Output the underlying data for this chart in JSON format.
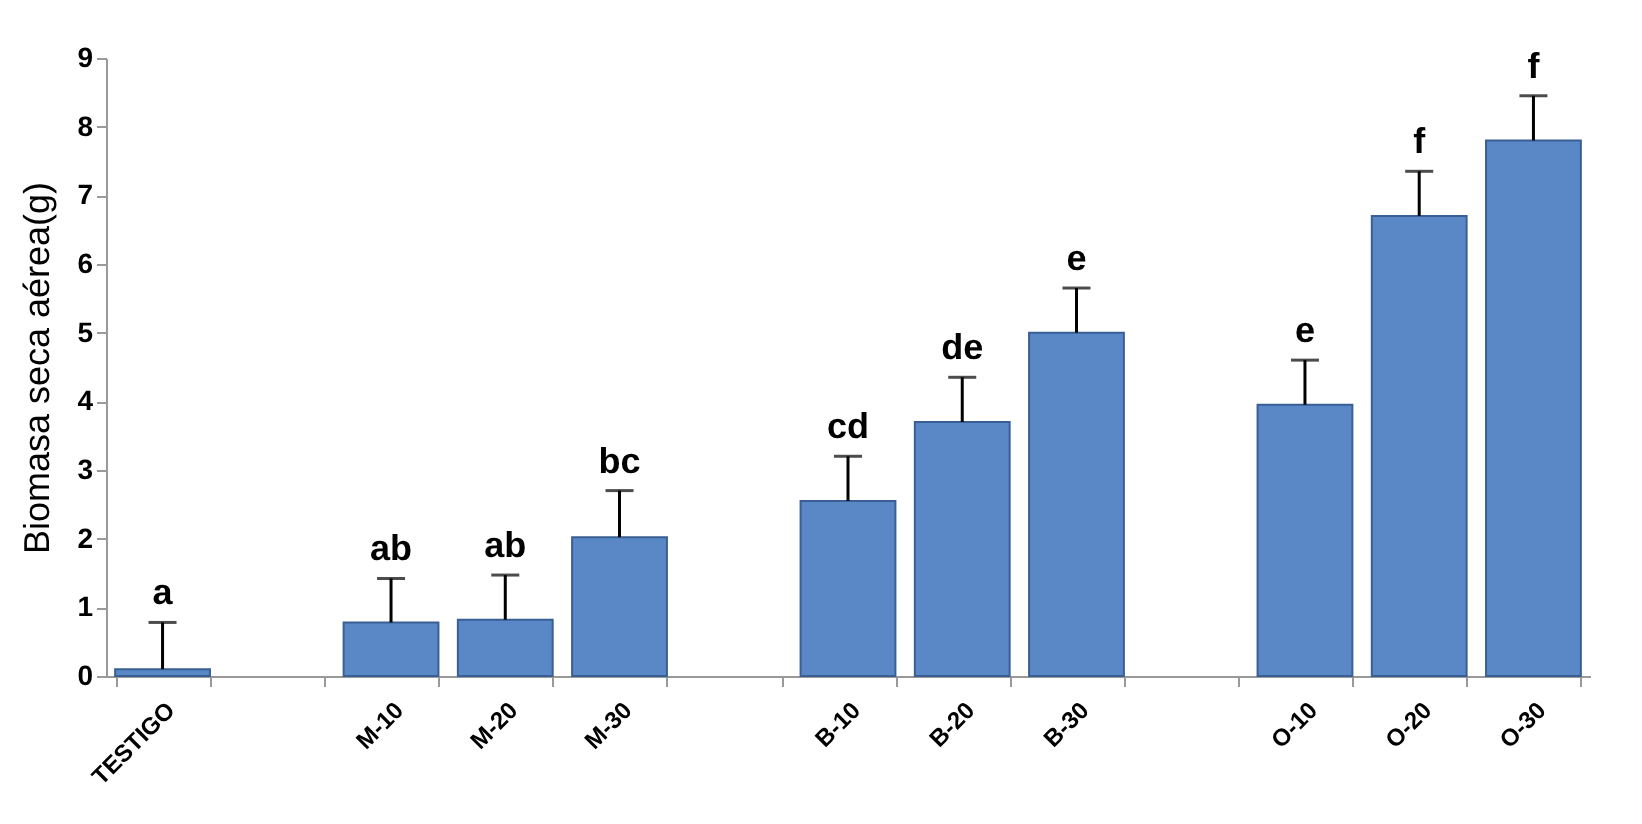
{
  "chart_data": {
    "type": "bar",
    "ylabel": "Biomasa seca aérea(g)",
    "categories": [
      "TESTIGO",
      null,
      "M-10",
      "M-20",
      "M-30",
      null,
      "B-10",
      "B-20",
      "B-30",
      null,
      "O-10",
      "O-20",
      "O-30"
    ],
    "values": [
      0.1,
      null,
      0.78,
      0.82,
      2.02,
      null,
      2.55,
      3.7,
      5.0,
      null,
      3.95,
      6.7,
      7.8
    ],
    "errors": [
      [
        0.1,
        0.78
      ],
      null,
      [
        0.78,
        1.42
      ],
      [
        0.82,
        1.47
      ],
      [
        2.02,
        2.7
      ],
      null,
      [
        2.55,
        3.2
      ],
      [
        3.7,
        4.35
      ],
      [
        5.0,
        5.65
      ],
      null,
      [
        3.95,
        4.6
      ],
      [
        6.7,
        7.35
      ],
      [
        7.8,
        8.45
      ]
    ],
    "color": "#5a87c6",
    "ylim": [
      0,
      9
    ],
    "yticks": [
      0,
      1,
      2,
      3,
      4,
      5,
      6,
      7,
      8,
      9
    ],
    "grid": false,
    "annotations": [
      {
        "text": "a",
        "x": "TESTIGO",
        "y": 0.78
      },
      {
        "text": "ab",
        "x": "M-10",
        "y": 1.42
      },
      {
        "text": "ab",
        "x": "M-20",
        "y": 1.47
      },
      {
        "text": "bc",
        "x": "M-30",
        "y": 2.7
      },
      {
        "text": "cd",
        "x": "B-10",
        "y": 3.2
      },
      {
        "text": "de",
        "x": "B-20",
        "y": 4.35
      },
      {
        "text": "e",
        "x": "B-30",
        "y": 5.65
      },
      {
        "text": "e",
        "x": "O-10",
        "y": 4.6
      },
      {
        "text": "f",
        "x": "O-20",
        "y": 7.35
      },
      {
        "text": "f",
        "x": "O-30",
        "y": 8.45
      }
    ]
  }
}
